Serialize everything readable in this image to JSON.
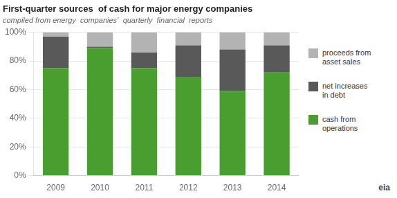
{
  "chart_data": {
    "type": "bar",
    "title": "First-quarter sources  of cash for major energy companies",
    "subtitle": "compiled from energy  companies’  quarterly  financial  reports",
    "categories": [
      "2009",
      "2010",
      "2011",
      "2012",
      "2013",
      "2014"
    ],
    "series": [
      {
        "name": "cash from\noperations",
        "color": "#4a9e2f",
        "values": [
          75,
          89,
          75,
          69,
          59,
          72
        ]
      },
      {
        "name": "net increases\nin debt",
        "color": "#595959",
        "values": [
          22,
          1,
          11,
          22,
          29,
          19
        ]
      },
      {
        "name": "proceeds from\nasset sales",
        "color": "#b3b3b3",
        "values": [
          3,
          10,
          14,
          9,
          12,
          9
        ]
      }
    ],
    "stacked": true,
    "ylim": [
      0,
      100
    ],
    "yticks": [
      {
        "value": 0,
        "label": "0%"
      },
      {
        "value": 20,
        "label": "20%"
      },
      {
        "value": 40,
        "label": "40%"
      },
      {
        "value": 60,
        "label": "60%"
      },
      {
        "value": 80,
        "label": "80%"
      },
      {
        "value": 100,
        "label": "100%"
      }
    ],
    "grid": true,
    "legend": "right",
    "annotations": [
      "eia"
    ]
  }
}
